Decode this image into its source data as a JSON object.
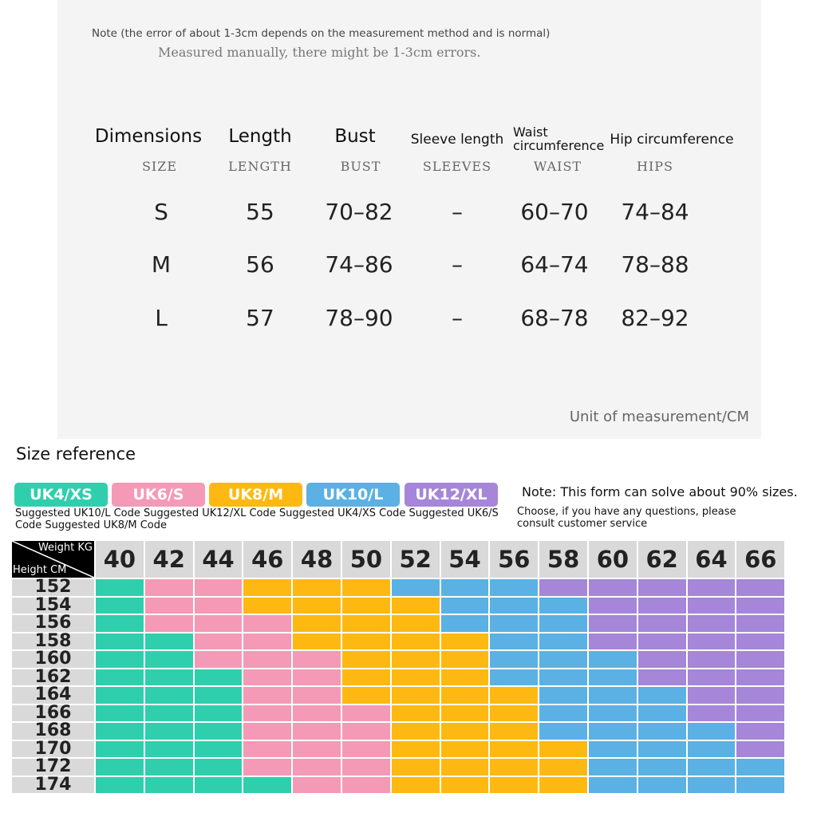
{
  "notes": {
    "error_note": "Note (the error of about 1-3cm depends on the measurement method and is normal)",
    "manual_note": "Measured manually, there might be 1-3cm errors."
  },
  "dimensions_table": {
    "headers": [
      {
        "label": "Dimensions",
        "sub": "SIZE"
      },
      {
        "label": "Length",
        "sub": "LENGTH"
      },
      {
        "label": "Bust",
        "sub": "BUST"
      },
      {
        "label": "Sleeve length",
        "sub": "SLEEVES"
      },
      {
        "label": "Waist circumference",
        "sub": "WAIST"
      },
      {
        "label": "Hip circumference",
        "sub": "HIPS"
      }
    ],
    "waist_line1": "Waist",
    "waist_line2": "circumference",
    "rows": [
      [
        "S",
        "55",
        "70–82",
        "–",
        "60–70",
        "74–84"
      ],
      [
        "M",
        "56",
        "74–86",
        "–",
        "64–74",
        "78–88"
      ],
      [
        "L",
        "57",
        "78–90",
        "–",
        "68–78",
        "82–92"
      ]
    ],
    "unit": "Unit of measurement/CM"
  },
  "size_reference": {
    "title": "Size reference",
    "badges": [
      {
        "label": "UK4/XS",
        "color": "#2fcfad"
      },
      {
        "label": "UK6/S",
        "color": "#f49ab6"
      },
      {
        "label": "UK8/M",
        "color": "#fdb912"
      },
      {
        "label": "UK10/L",
        "color": "#5bb1e3"
      },
      {
        "label": "UK12/XL",
        "color": "#a586d8"
      }
    ],
    "suggestion": "Suggested UK10/L Code Suggested UK12/XL Code Suggested UK4/XS Code Suggested UK6/S Code Suggested UK8/M Code",
    "note": "Note: This form can solve about 90% sizes.",
    "consult": "Choose, if you have any questions, please consult customer service",
    "weight_label": "Weight KG",
    "height_label": "Height CM",
    "weights": [
      "40",
      "42",
      "44",
      "46",
      "48",
      "50",
      "52",
      "54",
      "56",
      "58",
      "60",
      "62",
      "64",
      "66"
    ],
    "heights": [
      "152",
      "154",
      "156",
      "158",
      "160",
      "162",
      "164",
      "166",
      "168",
      "170",
      "172",
      "174"
    ],
    "size_keys": [
      "UK4/XS",
      "UK6/S",
      "UK8/M",
      "UK10/L",
      "UK12/XL"
    ],
    "grid": [
      [
        "UK4/XS",
        "UK6/S",
        "UK6/S",
        "UK8/M",
        "UK8/M",
        "UK8/M",
        "UK10/L",
        "UK10/L",
        "UK10/L",
        "UK12/XL",
        "UK12/XL",
        "UK12/XL",
        "UK12/XL",
        "UK12/XL"
      ],
      [
        "UK4/XS",
        "UK6/S",
        "UK6/S",
        "UK8/M",
        "UK8/M",
        "UK8/M",
        "UK8/M",
        "UK10/L",
        "UK10/L",
        "UK10/L",
        "UK12/XL",
        "UK12/XL",
        "UK12/XL",
        "UK12/XL"
      ],
      [
        "UK4/XS",
        "UK6/S",
        "UK6/S",
        "UK6/S",
        "UK8/M",
        "UK8/M",
        "UK8/M",
        "UK10/L",
        "UK10/L",
        "UK10/L",
        "UK12/XL",
        "UK12/XL",
        "UK12/XL",
        "UK12/XL"
      ],
      [
        "UK4/XS",
        "UK4/XS",
        "UK6/S",
        "UK6/S",
        "UK8/M",
        "UK8/M",
        "UK8/M",
        "UK8/M",
        "UK10/L",
        "UK10/L",
        "UK12/XL",
        "UK12/XL",
        "UK12/XL",
        "UK12/XL"
      ],
      [
        "UK4/XS",
        "UK4/XS",
        "UK6/S",
        "UK6/S",
        "UK6/S",
        "UK8/M",
        "UK8/M",
        "UK8/M",
        "UK10/L",
        "UK10/L",
        "UK10/L",
        "UK12/XL",
        "UK12/XL",
        "UK12/XL"
      ],
      [
        "UK4/XS",
        "UK4/XS",
        "UK4/XS",
        "UK6/S",
        "UK6/S",
        "UK8/M",
        "UK8/M",
        "UK8/M",
        "UK10/L",
        "UK10/L",
        "UK10/L",
        "UK12/XL",
        "UK12/XL",
        "UK12/XL"
      ],
      [
        "UK4/XS",
        "UK4/XS",
        "UK4/XS",
        "UK6/S",
        "UK6/S",
        "UK8/M",
        "UK8/M",
        "UK8/M",
        "UK8/M",
        "UK10/L",
        "UK10/L",
        "UK10/L",
        "UK12/XL",
        "UK12/XL"
      ],
      [
        "UK4/XS",
        "UK4/XS",
        "UK4/XS",
        "UK6/S",
        "UK6/S",
        "UK6/S",
        "UK8/M",
        "UK8/M",
        "UK8/M",
        "UK10/L",
        "UK10/L",
        "UK10/L",
        "UK12/XL",
        "UK12/XL"
      ],
      [
        "UK4/XS",
        "UK4/XS",
        "UK4/XS",
        "UK6/S",
        "UK6/S",
        "UK6/S",
        "UK8/M",
        "UK8/M",
        "UK8/M",
        "UK10/L",
        "UK10/L",
        "UK10/L",
        "UK10/L",
        "UK12/XL"
      ],
      [
        "UK4/XS",
        "UK4/XS",
        "UK4/XS",
        "UK6/S",
        "UK6/S",
        "UK6/S",
        "UK8/M",
        "UK8/M",
        "UK8/M",
        "UK8/M",
        "UK10/L",
        "UK10/L",
        "UK10/L",
        "UK12/XL"
      ],
      [
        "UK4/XS",
        "UK4/XS",
        "UK4/XS",
        "UK6/S",
        "UK6/S",
        "UK6/S",
        "UK8/M",
        "UK8/M",
        "UK8/M",
        "UK8/M",
        "UK10/L",
        "UK10/L",
        "UK10/L",
        "UK10/L"
      ],
      [
        "UK4/XS",
        "UK4/XS",
        "UK4/XS",
        "UK4/XS",
        "UK6/S",
        "UK6/S",
        "UK8/M",
        "UK8/M",
        "UK8/M",
        "UK8/M",
        "UK10/L",
        "UK10/L",
        "UK10/L",
        "UK10/L"
      ]
    ]
  }
}
